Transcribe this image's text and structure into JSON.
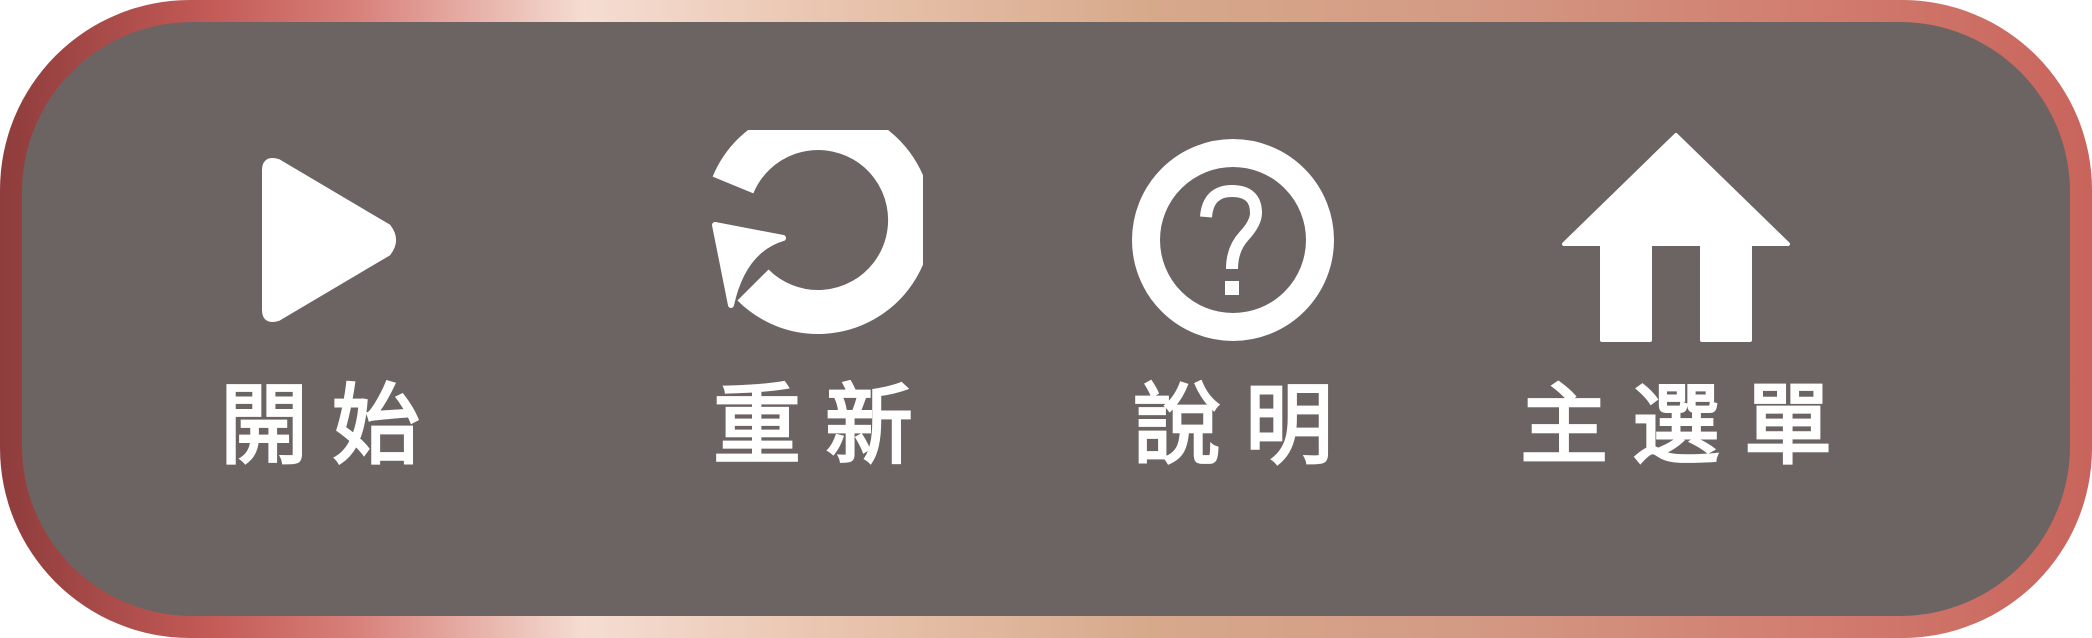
{
  "menu": {
    "buttons": [
      {
        "label": "開始",
        "icon": "play-icon"
      },
      {
        "label": "重新",
        "icon": "restart-icon"
      },
      {
        "label": "說明",
        "icon": "help-icon"
      },
      {
        "label": "主選單",
        "icon": "home-icon"
      }
    ]
  },
  "colors": {
    "panel": "#6c6462",
    "text": "#ffffff",
    "frame_gradient": [
      "#8e3c3c",
      "#c35a56",
      "#f5ddd2",
      "#d7a98b",
      "#c8645c"
    ]
  }
}
